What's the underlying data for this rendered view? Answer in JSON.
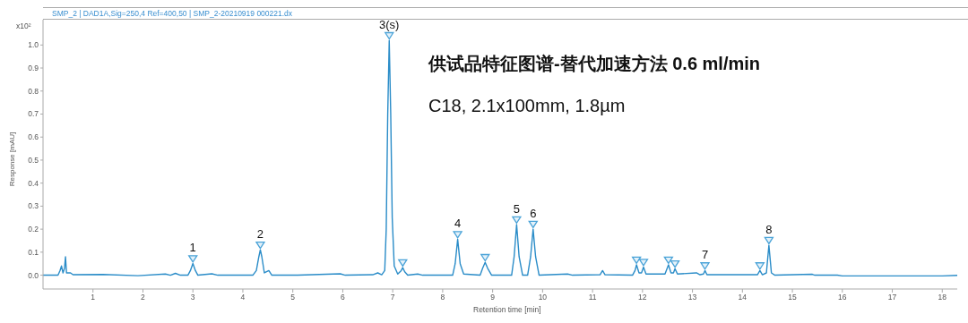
{
  "chart_data": {
    "type": "line",
    "title": "SMP_2 | DAD1A,Sig=250,4  Ref=400,50 | SMP_2-20210919 000221.dx",
    "xlabel": "Retention time [min]",
    "ylabel": "Response [mAU]",
    "annotations": [
      "x10²",
      "供试品特征图谱-替代加速方法 0.6 ml/min",
      "C18, 2.1x100mm, 1.8µm",
      {
        "text": "1",
        "x": 3.0,
        "y": 0.051
      },
      {
        "text": "2",
        "x": 4.35,
        "y": 0.11
      },
      {
        "text": "3(s)",
        "x": 6.93,
        "y": 1.02
      },
      {
        "text": "4",
        "x": 8.3,
        "y": 0.156
      },
      {
        "text": "5",
        "x": 9.48,
        "y": 0.22
      },
      {
        "text": "6",
        "x": 9.81,
        "y": 0.2
      },
      {
        "text": "7",
        "x": 13.25,
        "y": 0.02
      },
      {
        "text": "8",
        "x": 14.53,
        "y": 0.13
      }
    ],
    "series": [
      {
        "color": "#2a8cc8",
        "marker": "none",
        "x": [
          0,
          0.3,
          0.34,
          0.37,
          0.4,
          0.43,
          0.45,
          0.47,
          0.55,
          0.6,
          1.2,
          1.9,
          2.45,
          2.55,
          2.65,
          2.75,
          2.9,
          2.95,
          3.0,
          3.05,
          3.1,
          3.38,
          3.5,
          4.2,
          4.27,
          4.32,
          4.35,
          4.38,
          4.43,
          4.52,
          4.58,
          5.1,
          5.95,
          6.05,
          6.6,
          6.7,
          6.78,
          6.84,
          6.87,
          6.9,
          6.93,
          6.96,
          6.99,
          7.03,
          7.1,
          7.17,
          7.2,
          7.24,
          7.3,
          7.5,
          7.6,
          8.2,
          8.25,
          8.3,
          8.35,
          8.42,
          8.75,
          8.8,
          8.85,
          8.9,
          8.98,
          9.38,
          9.43,
          9.48,
          9.53,
          9.6,
          9.7,
          9.76,
          9.81,
          9.86,
          9.93,
          10.5,
          10.6,
          11.15,
          11.2,
          11.25,
          11.8,
          11.85,
          11.88,
          11.93,
          11.98,
          12.02,
          12.07,
          12.45,
          12.52,
          12.57,
          12.62,
          12.65,
          12.7,
          13.08,
          13.15,
          13.22,
          13.25,
          13.29,
          14.3,
          14.35,
          14.4,
          14.48,
          14.53,
          14.58,
          14.65,
          15.4,
          15.45,
          15.9,
          16.0,
          17.5,
          18.0,
          18.3
        ],
        "values": [
          0,
          0,
          0.02,
          0.04,
          0.01,
          0.03,
          0.08,
          0.01,
          0.01,
          0.002,
          0.003,
          -0.002,
          0.005,
          0,
          0.008,
          0,
          0,
          0.02,
          0.051,
          0.02,
          0,
          0.006,
          0,
          0,
          0.02,
          0.08,
          0.11,
          0.08,
          0.01,
          0.02,
          0,
          0,
          0.006,
          0,
          0.002,
          0.01,
          0.002,
          0.02,
          0.2,
          0.7,
          1.02,
          0.7,
          0.25,
          0.04,
          0.005,
          0.02,
          0.033,
          0.015,
          0,
          0.005,
          0,
          0,
          0.05,
          0.156,
          0.05,
          0.005,
          0,
          0.03,
          0.056,
          0.03,
          0,
          0,
          0.08,
          0.22,
          0.08,
          0,
          0,
          0.08,
          0.2,
          0.08,
          0,
          0.005,
          0,
          0.002,
          0.02,
          0.002,
          0,
          0.02,
          0.045,
          0.01,
          0.01,
          0.035,
          0.005,
          0.005,
          0.045,
          0.01,
          0.01,
          0.028,
          0.005,
          0.01,
          0.002,
          0.005,
          0.02,
          0.002,
          0.002,
          0.02,
          0.002,
          0.01,
          0.13,
          0.01,
          0,
          0.004,
          0,
          0,
          -0.003,
          -0.003,
          -0.003,
          -0.001
        ]
      },
      {
        "type": "scatter",
        "color": "#4aa3d8",
        "marker": "triangle",
        "x": [
          3.0,
          4.35,
          6.93,
          7.2,
          8.3,
          8.85,
          9.48,
          9.81,
          11.88,
          12.02,
          12.52,
          12.65,
          13.25,
          14.35,
          14.53
        ],
        "values": [
          0.071,
          0.13,
          1.04,
          0.053,
          0.176,
          0.076,
          0.24,
          0.22,
          0.065,
          0.055,
          0.065,
          0.048,
          0.04,
          0.04,
          0.15
        ]
      }
    ],
    "xlim": [
      0,
      18.3
    ],
    "xticks": [
      1,
      2,
      3,
      4,
      5,
      6,
      7,
      8,
      9,
      10,
      11,
      12,
      13,
      14,
      15,
      16,
      17,
      18
    ],
    "ylim": [
      -0.06,
      1.11
    ],
    "yticks": [
      {
        "value": 0,
        "label": "0.0"
      },
      {
        "value": 0.1,
        "label": "0.1"
      },
      {
        "value": 0.2,
        "label": "0.2"
      },
      {
        "value": 0.3,
        "label": "0.3"
      },
      {
        "value": 0.4,
        "label": "0.4"
      },
      {
        "value": 0.5,
        "label": "0.5"
      },
      {
        "value": 0.6,
        "label": "0.6"
      },
      {
        "value": 0.7,
        "label": "0.7"
      },
      {
        "value": 0.8,
        "label": "0.8"
      },
      {
        "value": 0.9,
        "label": "0.9"
      },
      {
        "value": 1.0,
        "label": "1.0"
      }
    ],
    "grid": false,
    "line_style": "solid"
  }
}
